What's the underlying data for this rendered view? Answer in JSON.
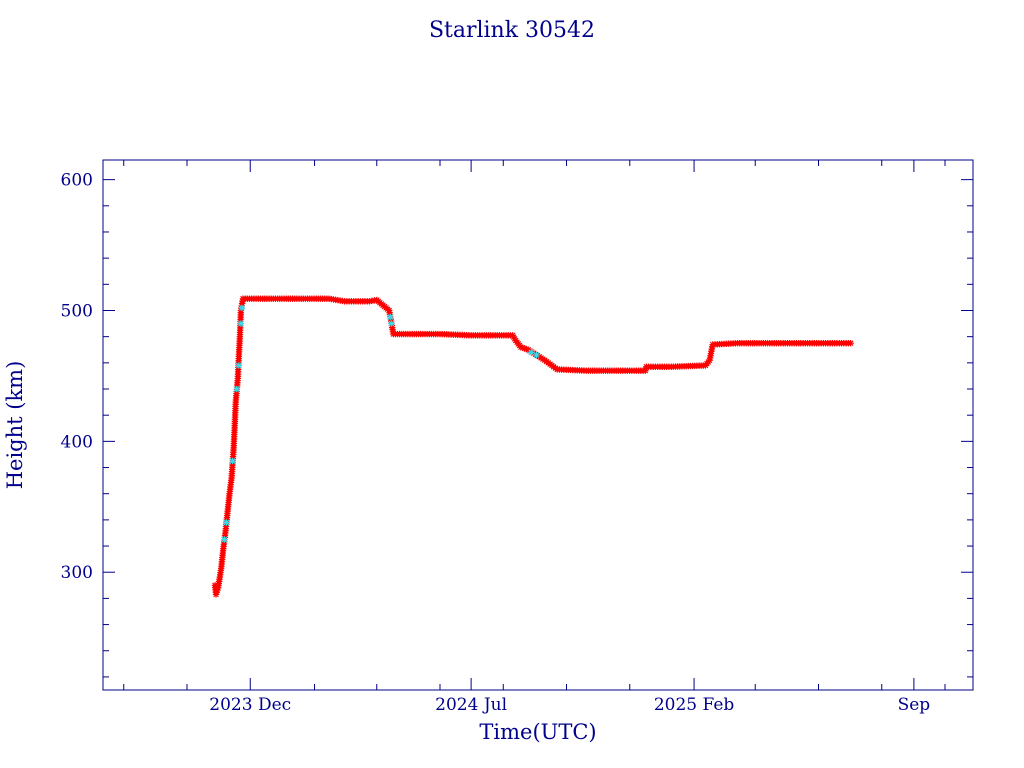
{
  "colors": {
    "axis": "#00008B",
    "text": "#00008B",
    "primary_marker": "#FF0000",
    "secondary_marker": "#33DDEE",
    "background": "#FFFFFF"
  },
  "chart_data": {
    "type": "scatter",
    "title": "Starlink 30542",
    "xlabel": "Time(UTC)",
    "ylabel": "Height (km)",
    "x_type": "date",
    "xlim": [
      "2023-07-12",
      "2025-10-28"
    ],
    "ylim": [
      210,
      615
    ],
    "x_ticks": [
      {
        "date": "2023-12-01",
        "label": "2023 Dec"
      },
      {
        "date": "2024-07-01",
        "label": "2024 Jul"
      },
      {
        "date": "2025-02-01",
        "label": "2025 Feb"
      },
      {
        "date": "2025-09-01",
        "label": "Sep"
      }
    ],
    "y_ticks": [
      300,
      400,
      500,
      600
    ],
    "y_tick_labels": [
      "300",
      "400",
      "500",
      "600"
    ],
    "grid": false,
    "legend": "none",
    "marker": "asterisk",
    "series": [
      {
        "color": "#FF0000",
        "points": [
          [
            "2023-10-28",
            290
          ],
          [
            "2023-10-29",
            283
          ],
          [
            "2023-10-31",
            288
          ],
          [
            "2023-11-03",
            303
          ],
          [
            "2023-11-05",
            318
          ],
          [
            "2023-11-07",
            330
          ],
          [
            "2023-11-09",
            345
          ],
          [
            "2023-11-11",
            360
          ],
          [
            "2023-11-13",
            372
          ],
          [
            "2023-11-15",
            395
          ],
          [
            "2023-11-16",
            412
          ],
          [
            "2023-11-17",
            430
          ],
          [
            "2023-11-19",
            448
          ],
          [
            "2023-11-20",
            465
          ],
          [
            "2023-11-21",
            480
          ],
          [
            "2023-11-22",
            500
          ],
          [
            "2023-11-24",
            509
          ],
          [
            "2023-12-15",
            509
          ],
          [
            "2024-01-15",
            509
          ],
          [
            "2024-02-15",
            509
          ],
          [
            "2024-03-01",
            507
          ],
          [
            "2024-03-25",
            507
          ],
          [
            "2024-04-01",
            508
          ],
          [
            "2024-04-07",
            504
          ],
          [
            "2024-04-13",
            500
          ],
          [
            "2024-04-17",
            482
          ],
          [
            "2024-05-01",
            482
          ],
          [
            "2024-06-01",
            482
          ],
          [
            "2024-07-01",
            481
          ],
          [
            "2024-08-10",
            481
          ],
          [
            "2024-08-13",
            477
          ],
          [
            "2024-08-18",
            472
          ],
          [
            "2024-08-25",
            470
          ],
          [
            "2024-09-10",
            462
          ],
          [
            "2024-09-22",
            455
          ],
          [
            "2024-10-20",
            454
          ],
          [
            "2024-11-20",
            454
          ],
          [
            "2024-12-16",
            454
          ],
          [
            "2024-12-17",
            457
          ],
          [
            "2025-01-10",
            457
          ],
          [
            "2025-02-12",
            458
          ],
          [
            "2025-02-16",
            462
          ],
          [
            "2025-02-19",
            474
          ],
          [
            "2025-03-15",
            475
          ],
          [
            "2025-04-15",
            475
          ],
          [
            "2025-05-15",
            475
          ],
          [
            "2025-06-10",
            475
          ],
          [
            "2025-07-02",
            475
          ]
        ]
      },
      {
        "color": "#33DDEE",
        "points": [
          [
            "2023-11-06",
            325
          ],
          [
            "2023-11-08",
            338
          ],
          [
            "2023-11-14",
            385
          ],
          [
            "2023-11-18",
            440
          ],
          [
            "2023-11-20",
            458
          ],
          [
            "2023-11-22",
            490
          ],
          [
            "2023-11-23",
            502
          ],
          [
            "2024-04-14",
            495
          ],
          [
            "2024-04-15",
            490
          ],
          [
            "2024-08-28",
            468
          ],
          [
            "2024-09-02",
            466
          ]
        ]
      }
    ]
  }
}
